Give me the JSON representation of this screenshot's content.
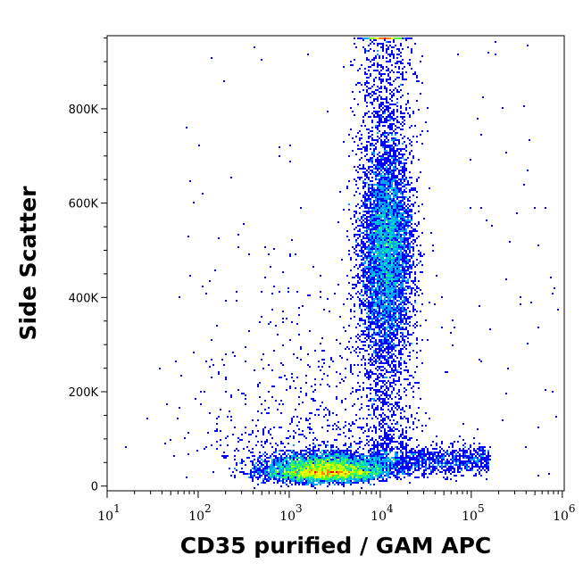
{
  "chart_data": {
    "type": "scatter",
    "subtype": "flow cytometry density dot plot",
    "xlabel": "CD35 purified / GAM APC",
    "ylabel": "Side Scatter",
    "x_scale": "log",
    "xlim": [
      10,
      1050000
    ],
    "ylim": [
      -10000,
      955000
    ],
    "x_ticks": [
      {
        "base": "10",
        "exp": "1"
      },
      {
        "base": "10",
        "exp": "2"
      },
      {
        "base": "10",
        "exp": "3"
      },
      {
        "base": "10",
        "exp": "4"
      },
      {
        "base": "10",
        "exp": "5"
      },
      {
        "base": "10",
        "exp": "6"
      }
    ],
    "y_ticks": [
      "0",
      "200K",
      "400K",
      "600K",
      "800K"
    ],
    "y_tick_values": [
      0,
      200000,
      400000,
      600000,
      800000
    ],
    "grid": false,
    "legend": "none",
    "density_colors": [
      "#0000ff",
      "#00a0ff",
      "#00e0c0",
      "#40ff40",
      "#c0ff00",
      "#ffff00",
      "#ff8000",
      "#ff0000"
    ],
    "populations": [
      {
        "description_x": "CD35 ~2.5x10^3",
        "x_center": 2500,
        "y_center": 30000,
        "relative_density": "highest"
      },
      {
        "description_x": "CD35 ~1.2x10^4",
        "x_center": 12000,
        "y_center": 500000,
        "relative_density": "medium"
      },
      {
        "description_x": "CD35 10^4-10^5",
        "x_center": 40000,
        "y_center": 60000,
        "relative_density": "low"
      }
    ]
  }
}
